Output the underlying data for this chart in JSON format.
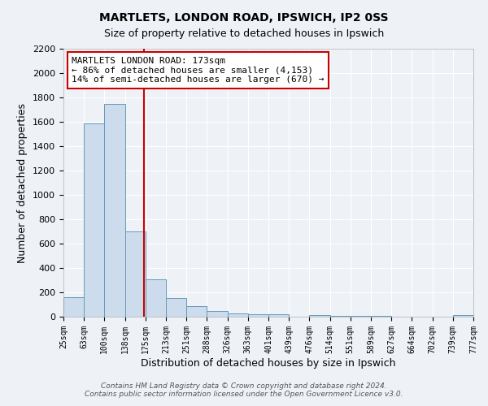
{
  "title": "MARTLETS, LONDON ROAD, IPSWICH, IP2 0SS",
  "subtitle": "Size of property relative to detached houses in Ipswich",
  "xlabel": "Distribution of detached houses by size in Ipswich",
  "ylabel": "Number of detached properties",
  "bar_color": "#ccdcec",
  "bar_edge_color": "#6699bb",
  "background_color": "#eef2f7",
  "grid_color": "#ffffff",
  "vline_x": 173,
  "vline_color": "#cc0000",
  "annotation_title": "MARTLETS LONDON ROAD: 173sqm",
  "annotation_line1": "← 86% of detached houses are smaller (4,153)",
  "annotation_line2": "14% of semi-detached houses are larger (670) →",
  "annotation_box_color": "#ffffff",
  "annotation_box_edge": "#cc0000",
  "bin_edges": [
    25,
    63,
    100,
    138,
    175,
    213,
    251,
    288,
    326,
    363,
    401,
    439,
    476,
    514,
    551,
    589,
    627,
    664,
    702,
    739,
    777
  ],
  "bin_counts": [
    160,
    1590,
    1750,
    700,
    310,
    155,
    85,
    45,
    25,
    20,
    20,
    0,
    15,
    10,
    10,
    5,
    0,
    0,
    0,
    15
  ],
  "ylim": [
    0,
    2200
  ],
  "yticks": [
    0,
    200,
    400,
    600,
    800,
    1000,
    1200,
    1400,
    1600,
    1800,
    2000,
    2200
  ],
  "footer_line1": "Contains HM Land Registry data © Crown copyright and database right 2024.",
  "footer_line2": "Contains public sector information licensed under the Open Government Licence v3.0."
}
